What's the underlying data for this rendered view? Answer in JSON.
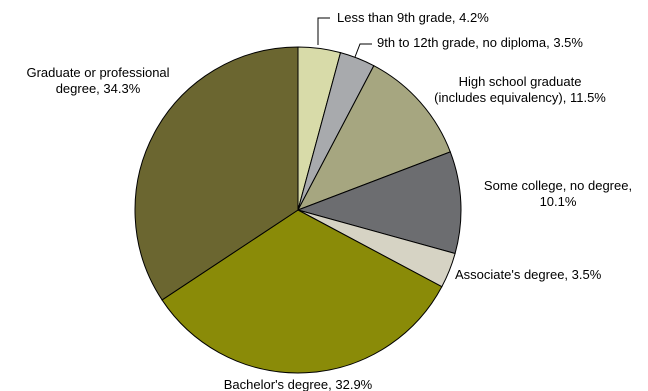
{
  "chart_data": {
    "type": "pie",
    "title": "",
    "slices": [
      {
        "label": "Less than 9th grade",
        "value": 4.2,
        "display": "4.2%",
        "color": "#d8dba9",
        "lines": [
          "Less than 9th grade, 4.2%"
        ]
      },
      {
        "label": "9th to 12th grade, no diploma",
        "value": 3.5,
        "display": "3.5%",
        "color": "#a8aaad",
        "lines": [
          "9th to 12th grade, no diploma,  3.5%"
        ]
      },
      {
        "label": "High school graduate (includes equivalency)",
        "value": 11.5,
        "display": "11.5%",
        "color": "#a6a680",
        "lines": [
          "High school graduate",
          "(includes equivalency), 11.5%"
        ]
      },
      {
        "label": "Some college, no degree",
        "value": 10.1,
        "display": "10.1%",
        "color": "#6c6d70",
        "lines": [
          "Some college, no degree,",
          "10.1%"
        ]
      },
      {
        "label": "Associate's degree",
        "value": 3.5,
        "display": "3.5%",
        "color": "#d6d3c4",
        "lines": [
          "Associate's degree, 3.5%"
        ]
      },
      {
        "label": "Bachelor's degree",
        "value": 32.9,
        "display": "32.9%",
        "color": "#8a8b08",
        "lines": [
          "Bachelor's degree, 32.9%"
        ]
      },
      {
        "label": "Graduate or professional degree",
        "value": 34.3,
        "display": "34.3%",
        "color": "#6b6630",
        "lines": [
          "Graduate or professional",
          "degree, 34.3%"
        ]
      }
    ],
    "start_angle": "12 o'clock",
    "direction": "clockwise"
  }
}
